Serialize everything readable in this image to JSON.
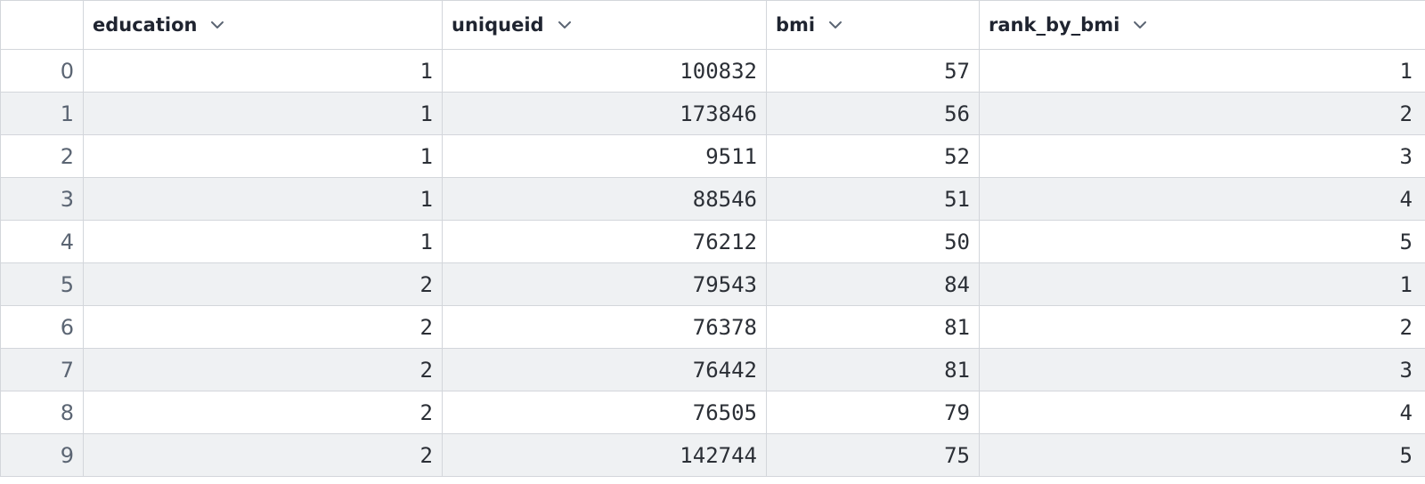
{
  "table": {
    "columns": [
      "education",
      "uniqueid",
      "bmi",
      "rank_by_bmi"
    ],
    "rows": [
      {
        "index": "0",
        "cells": [
          "1",
          "100832",
          "57",
          "1"
        ]
      },
      {
        "index": "1",
        "cells": [
          "1",
          "173846",
          "56",
          "2"
        ]
      },
      {
        "index": "2",
        "cells": [
          "1",
          "9511",
          "52",
          "3"
        ]
      },
      {
        "index": "3",
        "cells": [
          "1",
          "88546",
          "51",
          "4"
        ]
      },
      {
        "index": "4",
        "cells": [
          "1",
          "76212",
          "50",
          "5"
        ]
      },
      {
        "index": "5",
        "cells": [
          "2",
          "79543",
          "84",
          "1"
        ]
      },
      {
        "index": "6",
        "cells": [
          "2",
          "76378",
          "81",
          "2"
        ]
      },
      {
        "index": "7",
        "cells": [
          "2",
          "76442",
          "81",
          "3"
        ]
      },
      {
        "index": "8",
        "cells": [
          "2",
          "76505",
          "79",
          "4"
        ]
      },
      {
        "index": "9",
        "cells": [
          "2",
          "142744",
          "75",
          "5"
        ]
      }
    ]
  },
  "icons": {
    "column_menu": "chevron-down-icon"
  },
  "colors": {
    "grid_line": "#d3d6db",
    "alt_row": "#eff1f3",
    "header_text": "#1f2430",
    "index_text": "#5b6573"
  }
}
